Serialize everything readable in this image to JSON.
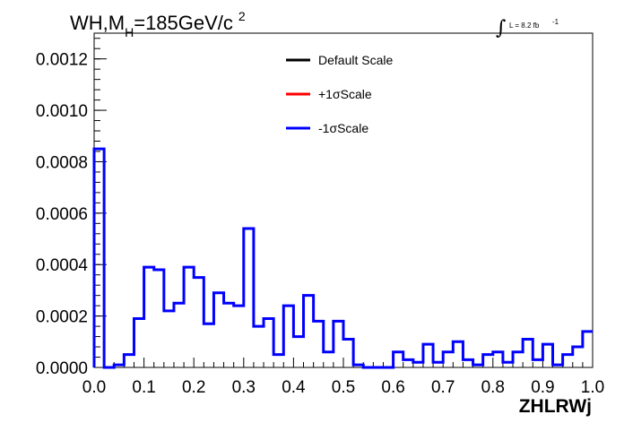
{
  "title": {
    "part1": "WH,M",
    "subscript": "H",
    "part2": "=185GeV/c",
    "superscript": "2"
  },
  "lumi": {
    "integral_symbol": "∫",
    "text": "L = 8.2 fb",
    "superscript": "-1"
  },
  "colors": {
    "default": "#000000",
    "plus": "#ff0000",
    "minus": "#0000ff",
    "frame": "#000000"
  },
  "chart_data": {
    "type": "line",
    "step": true,
    "xlabel": "ZHLRWj",
    "ylabel": "",
    "xlim": [
      0.0,
      1.0
    ],
    "ylim": [
      0.0,
      0.0013
    ],
    "x_ticks": [
      "0.0",
      "0.1",
      "0.2",
      "0.3",
      "0.4",
      "0.5",
      "0.6",
      "0.7",
      "0.8",
      "0.9",
      "1.0"
    ],
    "y_ticks": [
      "0.0000",
      "0.0002",
      "0.0004",
      "0.0006",
      "0.0008",
      "0.0010",
      "0.0012"
    ],
    "legend": {
      "placement": "top-center",
      "entries": [
        {
          "label": "Default Scale",
          "color": "#000000"
        },
        {
          "label": "+1σScale",
          "color": "#ff0000"
        },
        {
          "label": "-1σScale",
          "color": "#0000ff"
        }
      ]
    },
    "bin_edges_start": 0.0,
    "bin_width": 0.02,
    "series": [
      {
        "name": "-1σScale",
        "color": "#0000ff",
        "values": [
          0.00085,
          0.0,
          1e-05,
          5e-05,
          0.00019,
          0.00039,
          0.00038,
          0.00022,
          0.00025,
          0.00039,
          0.00035,
          0.00017,
          0.00029,
          0.00025,
          0.00024,
          0.00054,
          0.00016,
          0.00019,
          5e-05,
          0.00024,
          0.00012,
          0.00028,
          0.00018,
          6e-05,
          0.00018,
          0.00011,
          1e-05,
          0.0,
          0.0,
          0.0,
          6e-05,
          3e-05,
          2e-05,
          9e-05,
          2e-05,
          6e-05,
          0.0001,
          3e-05,
          1e-05,
          5e-05,
          6e-05,
          2e-05,
          6e-05,
          0.00011,
          3e-05,
          9e-05,
          1e-05,
          5e-05,
          8e-05,
          0.00014
        ]
      }
    ]
  }
}
